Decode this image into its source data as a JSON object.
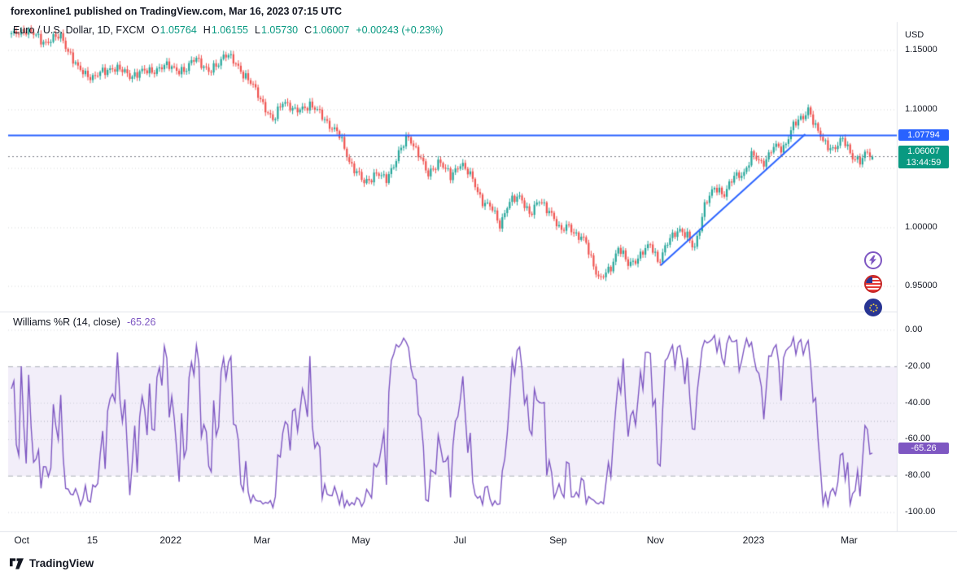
{
  "header": {
    "byline": "forexonline1 published on TradingView.com, Mar 16, 2023 07:15 UTC"
  },
  "symbol_bar": {
    "title": "Euro / U.S. Dollar, 1D, FXCM",
    "o_label": "O",
    "o_value": "1.05764",
    "h_label": "H",
    "h_value": "1.06155",
    "l_label": "L",
    "l_value": "1.05730",
    "c_label": "C",
    "c_value": "1.06007",
    "change": "+0.00243 (+0.23%)"
  },
  "price_axis": {
    "currency": "USD",
    "labels": [
      {
        "text": "1.15000",
        "price": 1.15
      },
      {
        "text": "1.10000",
        "price": 1.1
      },
      {
        "text": "1.00000",
        "price": 1.0
      },
      {
        "text": "0.95000",
        "price": 0.95
      }
    ],
    "hline_badge": {
      "text": "1.07794",
      "price": 1.07794,
      "color": "#2962ff"
    },
    "last_badge": {
      "text": "1.06007",
      "countdown": "13:44:59",
      "price": 1.06007,
      "color": "#089981"
    }
  },
  "indicator_pane": {
    "legend": "Williams %R (14, close)",
    "value": "-65.26",
    "labels": [
      {
        "text": "0.00",
        "value": 0
      },
      {
        "text": "-20.00",
        "value": -20
      },
      {
        "text": "-40.00",
        "value": -40
      },
      {
        "text": "-60.00",
        "value": -60
      },
      {
        "text": "-80.00",
        "value": -80
      },
      {
        "text": "-100.00",
        "value": -100
      }
    ],
    "badge": {
      "text": "-65.26",
      "value": -65.26,
      "color": "#7e57c2"
    }
  },
  "time_axis": {
    "labels": [
      {
        "text": "Oct",
        "f": 0.012
      },
      {
        "text": "15",
        "f": 0.094
      },
      {
        "text": "2022",
        "f": 0.185
      },
      {
        "text": "Mar",
        "f": 0.291
      },
      {
        "text": "May",
        "f": 0.406
      },
      {
        "text": "Jul",
        "f": 0.521
      },
      {
        "text": "Sep",
        "f": 0.635
      },
      {
        "text": "Nov",
        "f": 0.748
      },
      {
        "text": "2023",
        "f": 0.862
      },
      {
        "text": "Mar",
        "f": 0.973
      }
    ]
  },
  "event_icons": [
    {
      "name": "flash-event-icon",
      "color": "#7e57c2"
    },
    {
      "name": "us-flag-event-icon",
      "color": "#e53935"
    },
    {
      "name": "eu-flag-event-icon",
      "color": "#283593"
    }
  ],
  "footer": {
    "brand": "TradingView"
  },
  "chart_data": [
    {
      "type": "candlestick",
      "title": "Euro / U.S. Dollar, 1D, FXCM",
      "symbol": "EURUSD",
      "timeframe": "1D",
      "ohlc_last": {
        "open": 1.05764,
        "high": 1.06155,
        "low": 1.0573,
        "close": 1.06007,
        "change": 0.00243,
        "change_pct": 0.23
      },
      "y_range": [
        0.929,
        1.174
      ],
      "price_ticks": [
        1.15,
        1.1,
        1.05,
        1.0,
        0.95
      ],
      "x_tick_labels": [
        "Oct",
        "15",
        "2022",
        "Mar",
        "May",
        "Jul",
        "Sep",
        "Nov",
        "2023",
        "Mar"
      ],
      "horizontal_line": 1.07794,
      "trendline": {
        "t1": 0.754,
        "p1": 0.968,
        "t2": 0.922,
        "p2": 1.079
      },
      "line_color": "#2962ff",
      "up_color": "#26a69a",
      "down_color": "#ef5350",
      "candle_count": 350,
      "close_path_anchors": [
        [
          0.0,
          1.162
        ],
        [
          0.015,
          1.168
        ],
        [
          0.039,
          1.157
        ],
        [
          0.058,
          1.162
        ],
        [
          0.077,
          1.134
        ],
        [
          0.096,
          1.127
        ],
        [
          0.117,
          1.136
        ],
        [
          0.138,
          1.129
        ],
        [
          0.162,
          1.133
        ],
        [
          0.185,
          1.137
        ],
        [
          0.202,
          1.131
        ],
        [
          0.214,
          1.146
        ],
        [
          0.229,
          1.13
        ],
        [
          0.248,
          1.147
        ],
        [
          0.263,
          1.137
        ],
        [
          0.276,
          1.124
        ],
        [
          0.289,
          1.11
        ],
        [
          0.304,
          1.089
        ],
        [
          0.316,
          1.109
        ],
        [
          0.33,
          1.097
        ],
        [
          0.346,
          1.105
        ],
        [
          0.365,
          1.091
        ],
        [
          0.38,
          1.079
        ],
        [
          0.393,
          1.056
        ],
        [
          0.41,
          1.037
        ],
        [
          0.424,
          1.047
        ],
        [
          0.435,
          1.039
        ],
        [
          0.45,
          1.064
        ],
        [
          0.461,
          1.076
        ],
        [
          0.473,
          1.064
        ],
        [
          0.484,
          1.043
        ],
        [
          0.497,
          1.058
        ],
        [
          0.51,
          1.042
        ],
        [
          0.522,
          1.056
        ],
        [
          0.535,
          1.041
        ],
        [
          0.546,
          1.024
        ],
        [
          0.558,
          1.016
        ],
        [
          0.567,
          1.002
        ],
        [
          0.577,
          1.021
        ],
        [
          0.592,
          1.026
        ],
        [
          0.603,
          1.011
        ],
        [
          0.614,
          1.023
        ],
        [
          0.626,
          1.014
        ],
        [
          0.637,
          0.996
        ],
        [
          0.647,
          1.004
        ],
        [
          0.656,
          0.992
        ],
        [
          0.667,
          0.989
        ],
        [
          0.683,
          0.954
        ],
        [
          0.696,
          0.967
        ],
        [
          0.705,
          0.983
        ],
        [
          0.716,
          0.969
        ],
        [
          0.73,
          0.976
        ],
        [
          0.743,
          0.986
        ],
        [
          0.752,
          0.971
        ],
        [
          0.764,
          0.989
        ],
        [
          0.775,
          1.0
        ],
        [
          0.785,
          0.992
        ],
        [
          0.793,
          0.981
        ],
        [
          0.805,
          1.019
        ],
        [
          0.818,
          1.034
        ],
        [
          0.828,
          1.029
        ],
        [
          0.839,
          1.042
        ],
        [
          0.851,
          1.047
        ],
        [
          0.86,
          1.061
        ],
        [
          0.872,
          1.054
        ],
        [
          0.885,
          1.068
        ],
        [
          0.896,
          1.066
        ],
        [
          0.907,
          1.086
        ],
        [
          0.919,
          1.092
        ],
        [
          0.926,
          1.102
        ],
        [
          0.934,
          1.085
        ],
        [
          0.943,
          1.072
        ],
        [
          0.955,
          1.067
        ],
        [
          0.966,
          1.074
        ],
        [
          0.977,
          1.061
        ],
        [
          0.987,
          1.055
        ],
        [
          0.994,
          1.064
        ],
        [
          1.0,
          1.06
        ]
      ]
    },
    {
      "type": "line",
      "name": "Williams %R (14, close)",
      "period": 14,
      "source": "close",
      "last_value": -65.26,
      "y_range": [
        0,
        -100
      ],
      "ticks": [
        0,
        -20,
        -40,
        -60,
        -80,
        -100
      ],
      "overbought": -20,
      "oversold": -80,
      "midline": -50,
      "color": "#7e57c2",
      "band_fill": "rgba(126,87,194,0.10)",
      "derived_from": "price candles of pane above, lookback 14 bars"
    }
  ]
}
